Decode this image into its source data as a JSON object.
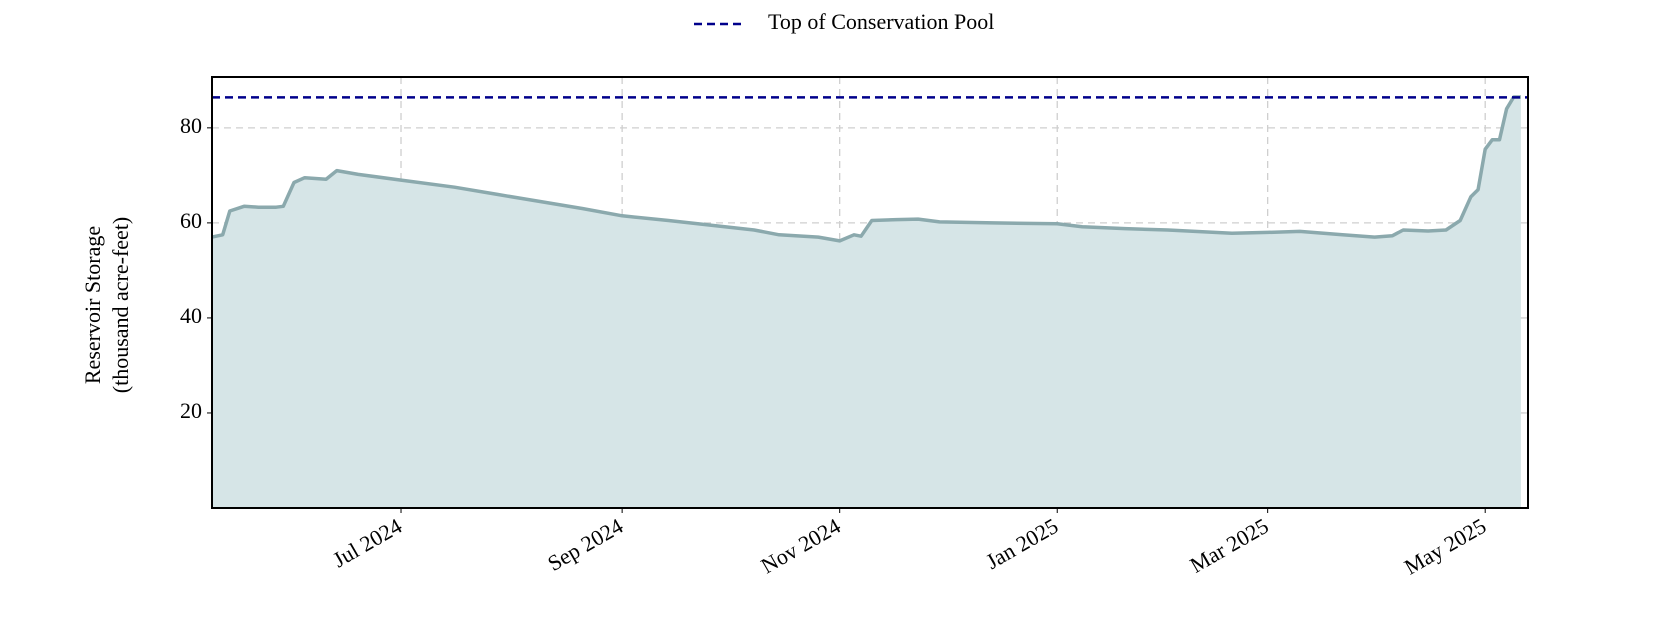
{
  "chart_data": {
    "type": "area",
    "ylabel": [
      "Reservoir Storage",
      "(thousand acre-feet)"
    ],
    "x": [
      "2024-05-09",
      "2024-05-12",
      "2024-05-14",
      "2024-05-18",
      "2024-05-22",
      "2024-05-27",
      "2024-05-29",
      "2024-06-01",
      "2024-06-04",
      "2024-06-10",
      "2024-06-13",
      "2024-06-19",
      "2024-07-01",
      "2024-07-16",
      "2024-07-28",
      "2024-08-09",
      "2024-08-21",
      "2024-09-01",
      "2024-09-14",
      "2024-09-26",
      "2024-10-08",
      "2024-10-15",
      "2024-10-26",
      "2024-11-01",
      "2024-11-05",
      "2024-11-07",
      "2024-11-10",
      "2024-11-17",
      "2024-11-23",
      "2024-11-29",
      "2024-12-14",
      "2025-01-01",
      "2025-01-08",
      "2025-01-20",
      "2025-02-01",
      "2025-02-19",
      "2025-03-01",
      "2025-03-10",
      "2025-03-22",
      "2025-03-31",
      "2025-04-05",
      "2025-04-08",
      "2025-04-15",
      "2025-04-20",
      "2025-04-24",
      "2025-04-27",
      "2025-04-29",
      "2025-05-01",
      "2025-05-03",
      "2025-05-05",
      "2025-05-07",
      "2025-05-09",
      "2025-05-11"
    ],
    "series": [
      {
        "name": "Reservoir Storage",
        "color": "#8ba9ad",
        "fill": "#d6e5e7",
        "values": [
          57,
          57.5,
          62.5,
          63.5,
          63.3,
          63.3,
          63.5,
          68.5,
          69.5,
          69.2,
          71,
          70.2,
          69,
          67.5,
          66,
          64.5,
          63,
          61.5,
          60.5,
          59.5,
          58.5,
          57.5,
          57,
          56.2,
          57.5,
          57.2,
          60.5,
          60.7,
          60.8,
          60.2,
          60,
          59.8,
          59.2,
          58.8,
          58.5,
          57.8,
          58,
          58.2,
          57.5,
          57,
          57.3,
          58.5,
          58.3,
          58.5,
          60.5,
          65.5,
          67,
          75.5,
          77.5,
          77.5,
          84,
          86.5,
          86.5
        ]
      }
    ],
    "hlines": [
      {
        "name": "Top of Conservation Pool",
        "value": 86.4,
        "color": "#00008b"
      }
    ],
    "xlim": [
      "2024-05-09",
      "2025-05-13"
    ],
    "xticks": [
      {
        "value": "2024-07-01",
        "label": "Jul 2024"
      },
      {
        "value": "2024-09-01",
        "label": "Sep 2024"
      },
      {
        "value": "2024-11-01",
        "label": "Nov 2024"
      },
      {
        "value": "2025-01-01",
        "label": "Jan 2025"
      },
      {
        "value": "2025-03-01",
        "label": "Mar 2025"
      },
      {
        "value": "2025-05-01",
        "label": "May 2025"
      }
    ],
    "ylim": [
      0,
      90.7
    ],
    "yticks": [
      20,
      40,
      60,
      80
    ],
    "grid": true
  }
}
